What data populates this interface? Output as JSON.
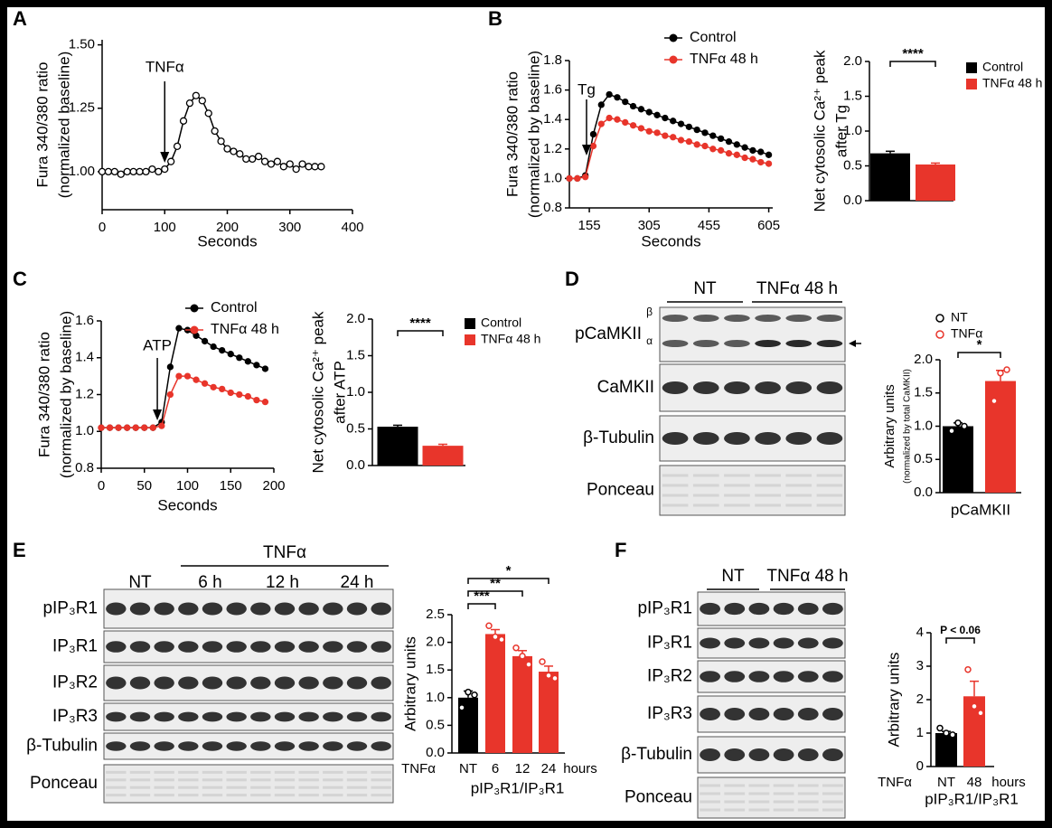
{
  "panels": [
    "A",
    "B",
    "C",
    "D",
    "E",
    "F"
  ],
  "chart_data": [
    {
      "type": "line",
      "xlabel": "Seconds",
      "ylabel": [
        "Fura 340/380 ratio",
        "(normalized baseline)"
      ],
      "annotation": "TNFα",
      "marker": "open-circle",
      "x": [
        0,
        10,
        20,
        30,
        40,
        50,
        60,
        70,
        80,
        90,
        100,
        110,
        120,
        130,
        140,
        150,
        160,
        170,
        180,
        190,
        200,
        210,
        220,
        230,
        240,
        250,
        260,
        270,
        280,
        290,
        300,
        310,
        320,
        330,
        340,
        350
      ],
      "series": [
        {
          "color": "#000000",
          "values": [
            1.0,
            1.0,
            1.0,
            0.99,
            1.0,
            1.0,
            1.0,
            1.0,
            1.01,
            1.0,
            1.01,
            1.04,
            1.1,
            1.2,
            1.27,
            1.3,
            1.28,
            1.23,
            1.16,
            1.12,
            1.09,
            1.08,
            1.07,
            1.05,
            1.05,
            1.06,
            1.04,
            1.03,
            1.04,
            1.02,
            1.03,
            1.01,
            1.03,
            1.02,
            1.02,
            1.02
          ]
        }
      ],
      "xlim": [
        0,
        400
      ],
      "xticks": [
        0,
        100,
        200,
        300,
        400
      ],
      "ylim": [
        0.85,
        1.52
      ],
      "yticks": [
        {
          "value": 1,
          "label": "1.00"
        },
        1.25,
        {
          "value": 1.5,
          "label": "1.50"
        }
      ]
    },
    {
      "type": "line",
      "xlabel": "Seconds",
      "ylabel": [
        "Fura 340/380 ratio",
        "(normalized by baseline)"
      ],
      "annotation": "Tg",
      "marker": "filled-circle",
      "x": [
        105,
        125,
        145,
        165,
        185,
        205,
        225,
        245,
        265,
        285,
        305,
        325,
        345,
        365,
        385,
        405,
        425,
        445,
        465,
        485,
        505,
        525,
        545,
        565,
        585,
        605
      ],
      "series": [
        {
          "name": "Control",
          "color": "#000000",
          "values": [
            1.0,
            1.0,
            1.02,
            1.3,
            1.5,
            1.57,
            1.55,
            1.52,
            1.49,
            1.47,
            1.45,
            1.43,
            1.41,
            1.39,
            1.37,
            1.35,
            1.33,
            1.31,
            1.29,
            1.27,
            1.25,
            1.23,
            1.21,
            1.19,
            1.18,
            1.16
          ]
        },
        {
          "name": "TNFα 48 h",
          "color": "#e8352b",
          "values": [
            1.0,
            1.0,
            1.01,
            1.22,
            1.37,
            1.41,
            1.4,
            1.38,
            1.36,
            1.34,
            1.32,
            1.31,
            1.29,
            1.28,
            1.26,
            1.25,
            1.23,
            1.22,
            1.2,
            1.19,
            1.17,
            1.16,
            1.14,
            1.13,
            1.11,
            1.1
          ]
        }
      ],
      "xlim": [
        105,
        615
      ],
      "xticks": [
        155,
        305,
        455,
        605
      ],
      "ylim": [
        0.8,
        1.8
      ],
      "yticks": [
        0.8,
        {
          "value": 1,
          "label": "1.0"
        },
        1.2,
        1.4,
        1.6,
        1.8
      ]
    },
    {
      "type": "bar",
      "ylabel": [
        "Net cytosolic Ca²⁺ peak",
        "after Tg"
      ],
      "significance": [
        "****"
      ],
      "series": [
        {
          "name": "Control",
          "color": "#000000",
          "values": [
            0.68
          ],
          "errors": [
            0.03
          ]
        },
        {
          "name": "TNFα 48 h",
          "color": "#e8352b",
          "values": [
            0.52
          ],
          "errors": [
            0.02
          ]
        }
      ],
      "ylim": [
        0,
        2
      ],
      "yticks": [
        {
          "value": 0,
          "label": "0.0"
        },
        0.5,
        {
          "value": 1,
          "label": "1.0"
        },
        1.5,
        {
          "value": 2,
          "label": "2.0"
        }
      ]
    },
    {
      "type": "line",
      "xlabel": "Seconds",
      "ylabel": [
        "Fura 340/380 ratio",
        "(normalized by baseline)"
      ],
      "annotation": "ATP",
      "marker": "filled-circle",
      "x": [
        0,
        10,
        20,
        30,
        40,
        50,
        60,
        70,
        80,
        90,
        100,
        110,
        120,
        130,
        140,
        150,
        160,
        170,
        180,
        190
      ],
      "series": [
        {
          "name": "Control",
          "color": "#000000",
          "values": [
            1.02,
            1.02,
            1.02,
            1.02,
            1.02,
            1.02,
            1.02,
            1.05,
            1.35,
            1.56,
            1.55,
            1.52,
            1.49,
            1.46,
            1.44,
            1.42,
            1.4,
            1.38,
            1.36,
            1.34
          ]
        },
        {
          "name": "TNFα 48 h",
          "color": "#e8352b",
          "values": [
            1.02,
            1.02,
            1.02,
            1.02,
            1.02,
            1.02,
            1.02,
            1.03,
            1.2,
            1.3,
            1.3,
            1.28,
            1.26,
            1.24,
            1.23,
            1.21,
            1.2,
            1.19,
            1.17,
            1.16
          ]
        }
      ],
      "xlim": [
        0,
        200
      ],
      "xticks": [
        0,
        50,
        100,
        150,
        200
      ],
      "ylim": [
        0.8,
        1.6
      ],
      "yticks": [
        0.8,
        {
          "value": 1,
          "label": "1.0"
        },
        1.2,
        1.4,
        1.6
      ]
    },
    {
      "type": "bar",
      "ylabel": [
        "Net cytosolic Ca²⁺ peak",
        "after ATP"
      ],
      "significance": [
        "****"
      ],
      "series": [
        {
          "name": "Control",
          "color": "#000000",
          "values": [
            0.53
          ],
          "errors": [
            0.02
          ]
        },
        {
          "name": "TNFα 48 h",
          "color": "#e8352b",
          "values": [
            0.27
          ],
          "errors": [
            0.02
          ]
        }
      ],
      "ylim": [
        0,
        2
      ],
      "yticks": [
        {
          "value": 0,
          "label": "0.0"
        },
        0.5,
        {
          "value": 1,
          "label": "1.0"
        },
        1.5,
        {
          "value": 2,
          "label": "2.0"
        }
      ]
    },
    {
      "type": "bar",
      "xlabel": "pCaMKII",
      "ylabel": [
        "Arbitrary units",
        "(normalized by total CaMKII)"
      ],
      "significance": [
        "*"
      ],
      "series": [
        {
          "name": "NT",
          "color": "#000000",
          "values": [
            1.0
          ],
          "errors": [
            0.05
          ],
          "points": [
            0.93,
            1.05,
            1.0
          ]
        },
        {
          "name": "TNFα",
          "color": "#e8352b",
          "values": [
            1.68
          ],
          "errors": [
            0.16
          ],
          "points": [
            1.38,
            1.8,
            1.85
          ]
        }
      ],
      "ylim": [
        0,
        2
      ],
      "yticks": [
        {
          "value": 0,
          "label": "0.0"
        },
        0.5,
        {
          "value": 1,
          "label": "1.0"
        },
        1.5,
        {
          "value": 2,
          "label": "2.0"
        }
      ]
    },
    {
      "type": "bar",
      "xlabel": "pIP₃R1/IP₃R1",
      "ylabel": [
        "Arbitrary units"
      ],
      "category_axis_label": "TNFα",
      "unit": "hours",
      "significance": [
        "***",
        "**",
        "*"
      ],
      "categories": [
        "NT",
        "6",
        "12",
        "24"
      ],
      "colors": [
        "#000000",
        "#e8352b",
        "#e8352b",
        "#e8352b"
      ],
      "values": [
        1.0,
        2.15,
        1.75,
        1.47
      ],
      "errors": [
        0.12,
        0.08,
        0.1,
        0.1
      ],
      "points": [
        [
          0.82,
          1.1,
          1.05
        ],
        [
          2.3,
          2.1,
          2.05
        ],
        [
          1.9,
          1.75,
          1.6
        ],
        [
          1.65,
          1.4,
          1.35
        ]
      ],
      "ylim": [
        0,
        2.5
      ],
      "yticks": [
        {
          "value": 0,
          "label": "0.0"
        },
        0.5,
        {
          "value": 1,
          "label": "1.0"
        },
        1.5,
        {
          "value": 2,
          "label": "2.0"
        },
        2.5
      ]
    },
    {
      "type": "bar",
      "xlabel": "pIP₃R1/IP₃R1",
      "ylabel": [
        "Arbitrary units"
      ],
      "category_axis_label": "TNFα",
      "unit": "hours",
      "significance": [
        "P < 0.06"
      ],
      "categories": [
        "NT",
        "48"
      ],
      "colors": [
        "#000000",
        "#e8352b"
      ],
      "values": [
        1.0,
        2.1
      ],
      "errors": [
        0.05,
        0.45
      ],
      "points": [
        [
          1.15,
          1.0,
          0.95
        ],
        [
          2.9,
          1.8,
          1.6
        ]
      ],
      "ylim": [
        0,
        4
      ],
      "yticks": [
        0,
        1,
        2,
        3,
        4
      ]
    }
  ],
  "blots": [
    {
      "headers": [
        "NT",
        "TNFα 48 h"
      ],
      "rows": [
        "pCaMKII",
        "CaMKII",
        "β-Tubulin",
        "Ponceau"
      ],
      "bands": [
        "β",
        "α"
      ]
    },
    {
      "group": "TNFα",
      "headers": [
        "NT",
        "6 h",
        "12 h",
        "24 h"
      ],
      "rows": [
        "pIP₃R1",
        "IP₃R1",
        "IP₃R2",
        "IP₃R3",
        "β-Tubulin",
        "Ponceau"
      ]
    },
    {
      "headers": [
        "NT",
        "TNFα 48 h"
      ],
      "rows": [
        "pIP₃R1",
        "IP₃R1",
        "IP₃R2",
        "IP₃R3",
        "β-Tubulin",
        "Ponceau"
      ]
    }
  ]
}
